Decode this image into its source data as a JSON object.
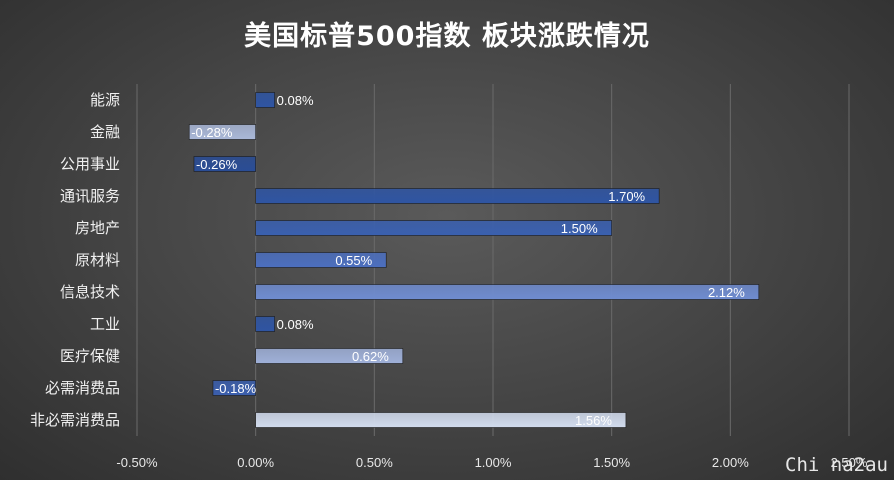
{
  "chart_data": {
    "type": "bar",
    "orientation": "horizontal",
    "title": "美国标普500指数 板块涨跌情况",
    "categories": [
      "能源",
      "金融",
      "公用事业",
      "通讯服务",
      "房地产",
      "原材料",
      "信息技术",
      "工业",
      "医疗保健",
      "必需消费品",
      "非必需消费品"
    ],
    "values": [
      0.08,
      -0.28,
      -0.26,
      1.7,
      1.5,
      0.55,
      2.12,
      0.08,
      0.62,
      -0.18,
      1.56
    ],
    "data_labels": [
      "0.08%",
      "-0.28%",
      "-0.26%",
      "1.70%",
      "1.50%",
      "0.55%",
      "2.12%",
      "0.08%",
      "0.62%",
      "-0.18%",
      "1.56%"
    ],
    "bar_colors": [
      "#2f55a3",
      "#aab8d8",
      "#2a4d96",
      "#2f55a3",
      "#3a60b0",
      "#4c6fbf",
      "#6f8cd0",
      "#2f55a3",
      "#9fb0d8",
      "#3b5fae",
      "#d2dcee"
    ],
    "xlim": [
      -0.5,
      2.5
    ],
    "xticks": [
      -0.5,
      0,
      0.5,
      1.0,
      1.5,
      2.0,
      2.5
    ],
    "xtick_labels": [
      "-0.50%",
      "0.00%",
      "0.50%",
      "1.00%",
      "1.50%",
      "2.00%",
      "2.50%"
    ],
    "grid": true,
    "xlabel": "",
    "ylabel": ""
  },
  "watermark": "Chi na2au"
}
